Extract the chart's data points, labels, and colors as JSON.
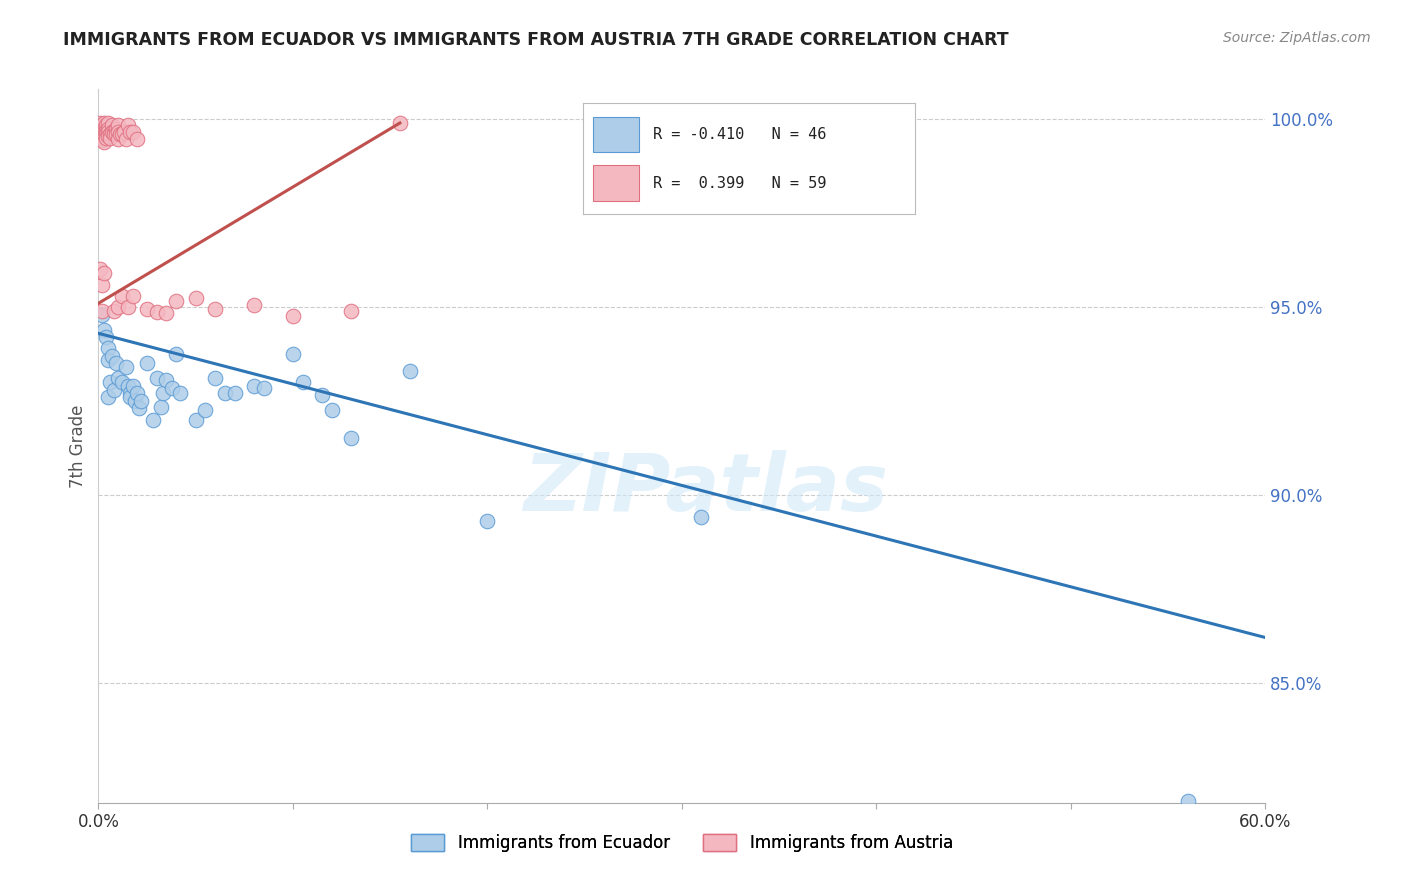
{
  "title": "IMMIGRANTS FROM ECUADOR VS IMMIGRANTS FROM AUSTRIA 7TH GRADE CORRELATION CHART",
  "source": "Source: ZipAtlas.com",
  "ylabel": "7th Grade",
  "xlim": [
    0.0,
    0.6
  ],
  "ylim": [
    0.818,
    1.008
  ],
  "ytick_values": [
    0.85,
    0.9,
    0.95,
    1.0
  ],
  "xtick_values": [
    0.0,
    0.1,
    0.2,
    0.3,
    0.4,
    0.5,
    0.6
  ],
  "watermark": "ZIPatlas",
  "ecuador_color": "#aecde8",
  "ecuador_edge_color": "#5b9bd5",
  "austria_color": "#f4b8c1",
  "austria_edge_color": "#e07080",
  "ecuador_trend_color": "#2e75b6",
  "austria_trend_color": "#c0504d",
  "ecuador_trend_x": [
    0.0,
    0.6
  ],
  "ecuador_trend_y": [
    0.943,
    0.862
  ],
  "austria_trend_x": [
    0.0,
    0.155
  ],
  "austria_trend_y": [
    0.951,
    0.999
  ],
  "ecuador_scatter": [
    [
      0.002,
      0.948
    ],
    [
      0.003,
      0.944
    ],
    [
      0.004,
      0.942
    ],
    [
      0.005,
      0.939
    ],
    [
      0.005,
      0.936
    ],
    [
      0.006,
      0.93
    ],
    [
      0.007,
      0.937
    ],
    [
      0.005,
      0.926
    ],
    [
      0.008,
      0.928
    ],
    [
      0.009,
      0.935
    ],
    [
      0.01,
      0.931
    ],
    [
      0.012,
      0.93
    ],
    [
      0.014,
      0.934
    ],
    [
      0.015,
      0.929
    ],
    [
      0.016,
      0.927
    ],
    [
      0.016,
      0.926
    ],
    [
      0.018,
      0.929
    ],
    [
      0.019,
      0.925
    ],
    [
      0.02,
      0.927
    ],
    [
      0.021,
      0.923
    ],
    [
      0.022,
      0.925
    ],
    [
      0.025,
      0.935
    ],
    [
      0.028,
      0.92
    ],
    [
      0.03,
      0.931
    ],
    [
      0.032,
      0.9235
    ],
    [
      0.033,
      0.927
    ],
    [
      0.035,
      0.9305
    ],
    [
      0.038,
      0.9285
    ],
    [
      0.04,
      0.9375
    ],
    [
      0.042,
      0.927
    ],
    [
      0.05,
      0.92
    ],
    [
      0.055,
      0.9225
    ],
    [
      0.06,
      0.931
    ],
    [
      0.065,
      0.927
    ],
    [
      0.07,
      0.927
    ],
    [
      0.08,
      0.929
    ],
    [
      0.085,
      0.9285
    ],
    [
      0.1,
      0.9375
    ],
    [
      0.105,
      0.93
    ],
    [
      0.115,
      0.9265
    ],
    [
      0.12,
      0.9225
    ],
    [
      0.13,
      0.915
    ],
    [
      0.16,
      0.933
    ],
    [
      0.2,
      0.893
    ],
    [
      0.31,
      0.894
    ],
    [
      0.56,
      0.8185
    ]
  ],
  "austria_scatter": [
    [
      0.001,
      0.999
    ],
    [
      0.001,
      0.998
    ],
    [
      0.002,
      0.9985
    ],
    [
      0.002,
      0.9975
    ],
    [
      0.002,
      0.9965
    ],
    [
      0.002,
      0.9955
    ],
    [
      0.002,
      0.9945
    ],
    [
      0.003,
      0.999
    ],
    [
      0.003,
      0.9975
    ],
    [
      0.003,
      0.9965
    ],
    [
      0.003,
      0.9958
    ],
    [
      0.003,
      0.995
    ],
    [
      0.003,
      0.994
    ],
    [
      0.004,
      0.9985
    ],
    [
      0.004,
      0.997
    ],
    [
      0.004,
      0.996
    ],
    [
      0.004,
      0.995
    ],
    [
      0.005,
      0.999
    ],
    [
      0.005,
      0.9975
    ],
    [
      0.005,
      0.9965
    ],
    [
      0.005,
      0.9955
    ],
    [
      0.006,
      0.996
    ],
    [
      0.006,
      0.995
    ],
    [
      0.007,
      0.9985
    ],
    [
      0.007,
      0.9965
    ],
    [
      0.008,
      0.997
    ],
    [
      0.008,
      0.996
    ],
    [
      0.009,
      0.9975
    ],
    [
      0.009,
      0.996
    ],
    [
      0.01,
      0.9985
    ],
    [
      0.01,
      0.9965
    ],
    [
      0.01,
      0.9948
    ],
    [
      0.011,
      0.996
    ],
    [
      0.012,
      0.996
    ],
    [
      0.013,
      0.9965
    ],
    [
      0.014,
      0.9948
    ],
    [
      0.015,
      0.9985
    ],
    [
      0.016,
      0.9965
    ],
    [
      0.018,
      0.9965
    ],
    [
      0.02,
      0.9948
    ],
    [
      0.001,
      0.96
    ],
    [
      0.002,
      0.949
    ],
    [
      0.002,
      0.956
    ],
    [
      0.003,
      0.959
    ],
    [
      0.008,
      0.949
    ],
    [
      0.01,
      0.95
    ],
    [
      0.012,
      0.953
    ],
    [
      0.015,
      0.95
    ],
    [
      0.018,
      0.953
    ],
    [
      0.025,
      0.9495
    ],
    [
      0.03,
      0.9488
    ],
    [
      0.035,
      0.9485
    ],
    [
      0.04,
      0.9515
    ],
    [
      0.05,
      0.9525
    ],
    [
      0.06,
      0.9495
    ],
    [
      0.08,
      0.9505
    ],
    [
      0.1,
      0.9475
    ],
    [
      0.13,
      0.949
    ],
    [
      0.155,
      0.999
    ]
  ]
}
